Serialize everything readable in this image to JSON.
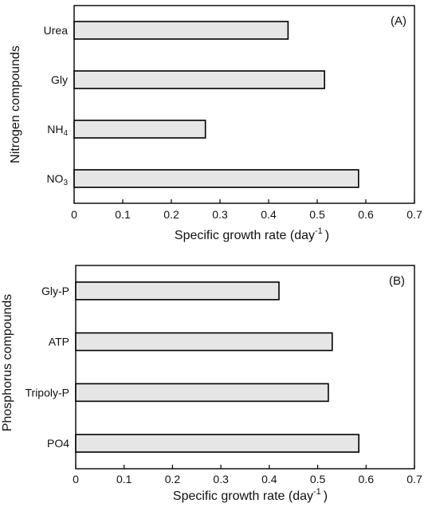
{
  "colors": {
    "bar_fill": "#e6e6e6",
    "bar_edge": "#000000",
    "background": "#ffffff"
  },
  "chart_data": [
    {
      "panel_label": "(A)",
      "type": "bar",
      "orientation": "horizontal",
      "categories": [
        "Urea",
        "Gly",
        "NH4",
        "NO3"
      ],
      "categories_display": [
        {
          "base": "Urea",
          "sub": ""
        },
        {
          "base": "Gly",
          "sub": ""
        },
        {
          "base": "NH",
          "sub": "4"
        },
        {
          "base": "NO",
          "sub": "3"
        }
      ],
      "values": [
        0.44,
        0.515,
        0.27,
        0.585
      ],
      "xlabel": "Specific growth rate (day",
      "xlabel_sup": "-1",
      "xlabel_close": ")",
      "ylabel": "Nitrogen compounds",
      "xlim": [
        0,
        0.7
      ],
      "xticks": [
        "0",
        "0.1",
        "0.2",
        "0.3",
        "0.4",
        "0.5",
        "0.6",
        "0.7"
      ],
      "grid": false
    },
    {
      "panel_label": "(B)",
      "type": "bar",
      "orientation": "horizontal",
      "categories": [
        "Gly-P",
        "ATP",
        "Tripoly-P",
        "PO4"
      ],
      "categories_display": [
        {
          "base": "Gly-P",
          "sub": ""
        },
        {
          "base": "ATP",
          "sub": ""
        },
        {
          "base": "Tripoly-P",
          "sub": ""
        },
        {
          "base": "PO4",
          "sub": ""
        }
      ],
      "values": [
        0.42,
        0.53,
        0.522,
        0.585
      ],
      "xlabel": "Specific growth rate (day",
      "xlabel_sup": "-1",
      "xlabel_close": ")",
      "ylabel": "Phosphorus compounds",
      "xlim": [
        0,
        0.7
      ],
      "xticks": [
        "0",
        "0.1",
        "0.2",
        "0.3",
        "0.4",
        "0.5",
        "0.6",
        "0.7"
      ],
      "grid": false
    }
  ]
}
